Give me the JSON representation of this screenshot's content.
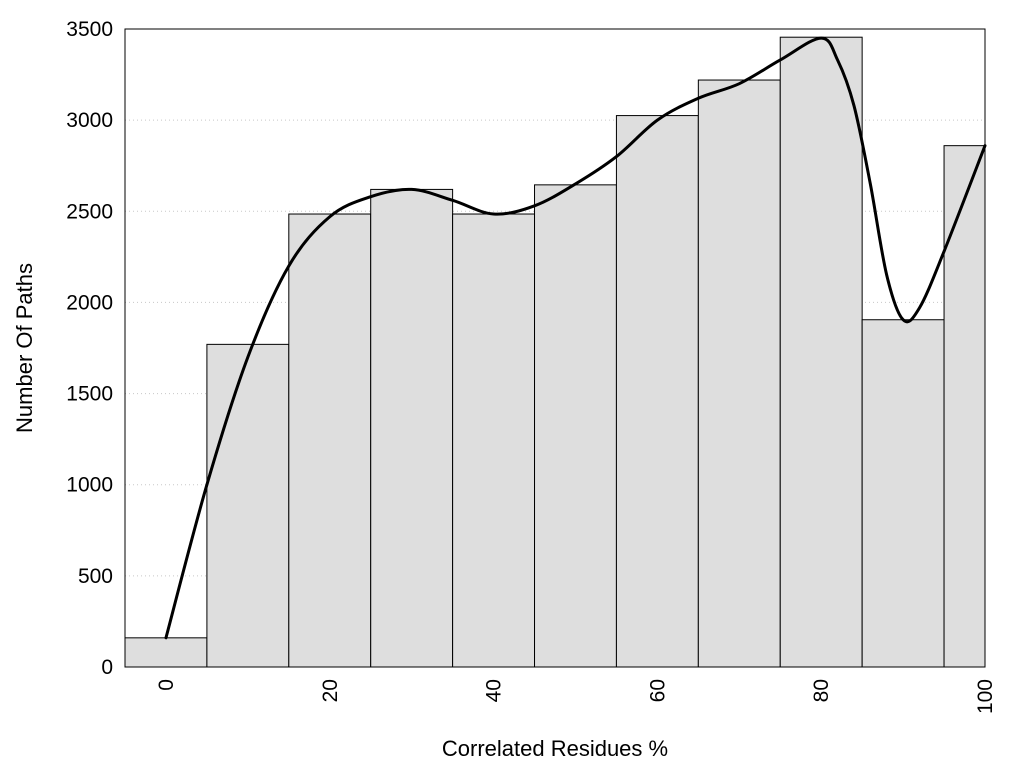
{
  "chart_data": {
    "type": "bar",
    "xlabel": "Correlated Residues %",
    "ylabel": "Number Of Paths",
    "xlim": [
      -5,
      100
    ],
    "ylim": [
      0,
      3500
    ],
    "x_ticks": [
      0,
      20,
      40,
      60,
      80,
      100
    ],
    "y_ticks": [
      0,
      500,
      1000,
      1500,
      2000,
      2500,
      3000,
      3500
    ],
    "grid": "horizontal dotted",
    "bars": {
      "name": "",
      "bin_centers": [
        0,
        10,
        20,
        30,
        40,
        50,
        60,
        70,
        80,
        90,
        100
      ],
      "bin_width": 10,
      "values": [
        160,
        1770,
        2485,
        2620,
        2485,
        2645,
        3025,
        3220,
        3455,
        1905,
        2860
      ],
      "fill": "#dedede",
      "stroke": "#000000"
    },
    "curve": {
      "name": "",
      "color": "#000000",
      "points": [
        [
          0,
          160
        ],
        [
          5,
          1000
        ],
        [
          10,
          1700
        ],
        [
          15,
          2200
        ],
        [
          20,
          2470
        ],
        [
          25,
          2580
        ],
        [
          30,
          2620
        ],
        [
          35,
          2560
        ],
        [
          40,
          2485
        ],
        [
          45,
          2530
        ],
        [
          50,
          2650
        ],
        [
          55,
          2800
        ],
        [
          60,
          3000
        ],
        [
          65,
          3120
        ],
        [
          70,
          3200
        ],
        [
          75,
          3330
        ],
        [
          80,
          3450
        ],
        [
          82,
          3330
        ],
        [
          84,
          3080
        ],
        [
          86,
          2650
        ],
        [
          88,
          2150
        ],
        [
          90,
          1905
        ],
        [
          92,
          1970
        ],
        [
          95,
          2280
        ],
        [
          100,
          2860
        ]
      ]
    }
  }
}
